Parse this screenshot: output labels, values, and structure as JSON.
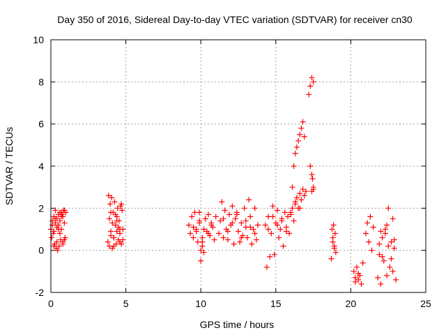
{
  "chart_data": {
    "type": "scatter",
    "title": "Day 350 of 2016, Sidereal Day-to-day VTEC variation (SDTVAR) for receiver cn30",
    "xlabel": "GPS time / hours",
    "ylabel": "SDTVAR / TECUs",
    "xlim": [
      0,
      25
    ],
    "ylim": [
      -2,
      10
    ],
    "xticks": [
      0,
      5,
      10,
      15,
      20,
      25
    ],
    "yticks": [
      -2,
      0,
      2,
      4,
      6,
      8,
      10
    ],
    "grid": true,
    "marker": "+",
    "series": [
      {
        "name": "SDTVAR",
        "color": "#ff0000",
        "x": [
          0.0,
          0.05,
          0.1,
          0.15,
          0.2,
          0.25,
          0.3,
          0.35,
          0.4,
          0.45,
          0.5,
          0.55,
          0.6,
          0.65,
          0.7,
          0.75,
          0.8,
          0.85,
          0.9,
          0.95,
          1.0,
          0.1,
          0.2,
          0.3,
          0.4,
          0.5,
          0.6,
          0.7,
          0.8,
          0.9,
          0.2,
          0.3,
          0.4,
          0.5,
          0.6,
          0.7,
          0.8,
          0.9,
          3.8,
          3.85,
          3.9,
          3.95,
          4.0,
          4.05,
          4.1,
          4.15,
          4.2,
          4.25,
          4.3,
          4.35,
          4.4,
          4.45,
          4.5,
          4.55,
          4.6,
          4.65,
          4.7,
          4.75,
          4.8,
          3.9,
          4.0,
          4.1,
          4.2,
          4.3,
          4.4,
          4.5,
          4.6,
          4.7,
          4.0,
          4.2,
          4.4,
          4.6,
          4.8,
          9.2,
          9.3,
          9.4,
          9.5,
          9.6,
          9.7,
          9.8,
          9.9,
          10.0,
          10.1,
          10.2,
          10.3,
          10.4,
          10.5,
          10.6,
          10.7,
          10.8,
          10.9,
          11.0,
          9.5,
          9.7,
          9.9,
          10.1,
          10.3,
          10.5,
          10.7,
          9.9,
          10.0,
          10.1,
          10.2,
          11.2,
          11.3,
          11.4,
          11.5,
          11.6,
          11.7,
          11.8,
          11.9,
          12.0,
          12.1,
          12.2,
          12.3,
          12.4,
          12.5,
          12.6,
          12.7,
          12.8,
          12.9,
          13.0,
          13.1,
          13.2,
          13.3,
          13.4,
          13.5,
          13.6,
          13.7,
          13.8,
          11.5,
          11.8,
          12.1,
          12.4,
          12.7,
          13.0,
          13.3,
          13.6,
          14.3,
          14.4,
          14.5,
          14.6,
          14.7,
          14.8,
          14.9,
          15.0,
          15.1,
          15.2,
          15.3,
          15.4,
          15.5,
          15.6,
          15.7,
          15.8,
          15.9,
          16.0,
          16.1,
          16.2,
          16.3,
          16.4,
          16.5,
          16.6,
          16.7,
          16.8,
          16.9,
          17.0,
          14.5,
          14.8,
          15.1,
          15.4,
          15.7,
          16.0,
          16.3,
          16.6,
          16.1,
          16.2,
          16.3,
          16.4,
          16.5,
          16.6,
          16.7,
          16.8,
          16.9,
          17.2,
          17.3,
          17.4,
          17.5,
          17.5,
          17.4,
          17.3,
          17.4,
          17.45,
          17.5,
          18.7,
          18.75,
          18.8,
          18.85,
          18.9,
          18.95,
          19.0,
          18.8,
          18.9,
          20.2,
          20.3,
          20.4,
          20.5,
          20.6,
          20.7,
          20.8,
          20.3,
          20.5,
          21.0,
          21.1,
          21.2,
          21.3,
          21.4,
          21.5,
          21.8,
          21.9,
          22.0,
          22.1,
          22.2,
          22.3,
          22.4,
          22.5,
          22.6,
          22.7,
          22.8,
          22.9,
          23.0,
          21.9,
          22.1,
          22.3,
          22.5,
          22.7,
          22.9,
          22.0,
          22.4,
          22.8
        ],
        "y": [
          1.0,
          0.6,
          1.4,
          0.8,
          1.6,
          0.3,
          1.9,
          0.1,
          1.5,
          0.0,
          1.2,
          0.2,
          1.8,
          0.5,
          1.0,
          1.7,
          0.4,
          1.9,
          1.3,
          0.6,
          1.8,
          1.2,
          0.9,
          1.5,
          1.1,
          1.7,
          0.8,
          1.6,
          0.3,
          0.5,
          0.2,
          1.3,
          0.4,
          1.0,
          1.4,
          1.8,
          1.6,
          1.9,
          0.4,
          2.6,
          0.2,
          2.2,
          0.9,
          2.5,
          0.1,
          1.8,
          0.6,
          2.3,
          1.2,
          0.3,
          1.6,
          2.0,
          0.5,
          1.4,
          0.8,
          2.1,
          0.3,
          1.9,
          1.0,
          1.5,
          0.7,
          1.3,
          0.2,
          1.7,
          0.9,
          1.1,
          0.4,
          2.2,
          1.8,
          0.6,
          1.4,
          1.0,
          0.5,
          1.2,
          0.8,
          1.6,
          0.6,
          1.8,
          1.0,
          0.4,
          1.4,
          -0.5,
          0.2,
          -0.1,
          1.5,
          0.9,
          1.7,
          0.7,
          1.3,
          1.1,
          0.5,
          1.6,
          1.1,
          0.9,
          1.3,
          0.6,
          1.5,
          0.8,
          1.2,
          1.8,
          0.0,
          0.4,
          1.0,
          0.8,
          1.4,
          2.3,
          0.6,
          1.9,
          1.0,
          0.5,
          1.7,
          1.2,
          2.1,
          0.3,
          1.5,
          1.8,
          0.9,
          0.4,
          1.3,
          0.7,
          2.0,
          1.1,
          0.6,
          2.4,
          1.6,
          0.3,
          1.0,
          2.0,
          0.5,
          1.2,
          1.5,
          0.9,
          1.3,
          1.7,
          0.6,
          1.4,
          1.1,
          0.8,
          1.2,
          -0.8,
          1.6,
          -0.3,
          0.8,
          2.1,
          -0.2,
          1.3,
          1.9,
          0.6,
          1.0,
          1.5,
          0.2,
          1.8,
          1.1,
          1.6,
          0.8,
          1.7,
          2.0,
          1.4,
          2.3,
          2.5,
          2.0,
          2.7,
          2.4,
          2.9,
          2.6,
          2.8,
          1.0,
          1.6,
          1.2,
          1.4,
          0.9,
          1.8,
          2.2,
          2.0,
          3.0,
          4.0,
          4.6,
          4.9,
          5.2,
          5.5,
          5.8,
          6.1,
          5.4,
          7.4,
          7.8,
          8.2,
          8.0,
          3.0,
          3.6,
          4.0,
          2.8,
          3.4,
          2.9,
          -0.4,
          1.0,
          0.6,
          1.2,
          0.2,
          0.8,
          -0.1,
          0.4,
          0.1,
          -1.0,
          -1.5,
          -0.8,
          -1.4,
          -1.2,
          -1.6,
          -0.6,
          -1.3,
          -1.1,
          0.8,
          1.3,
          0.4,
          1.6,
          0.0,
          1.1,
          -1.3,
          -0.2,
          -1.6,
          0.6,
          -0.5,
          1.0,
          -1.2,
          0.2,
          -0.8,
          0.4,
          -1.0,
          0.1,
          -1.4,
          0.3,
          -0.3,
          0.8,
          2.0,
          -0.4,
          0.5,
          0.9,
          1.2,
          1.5
        ]
      }
    ]
  }
}
